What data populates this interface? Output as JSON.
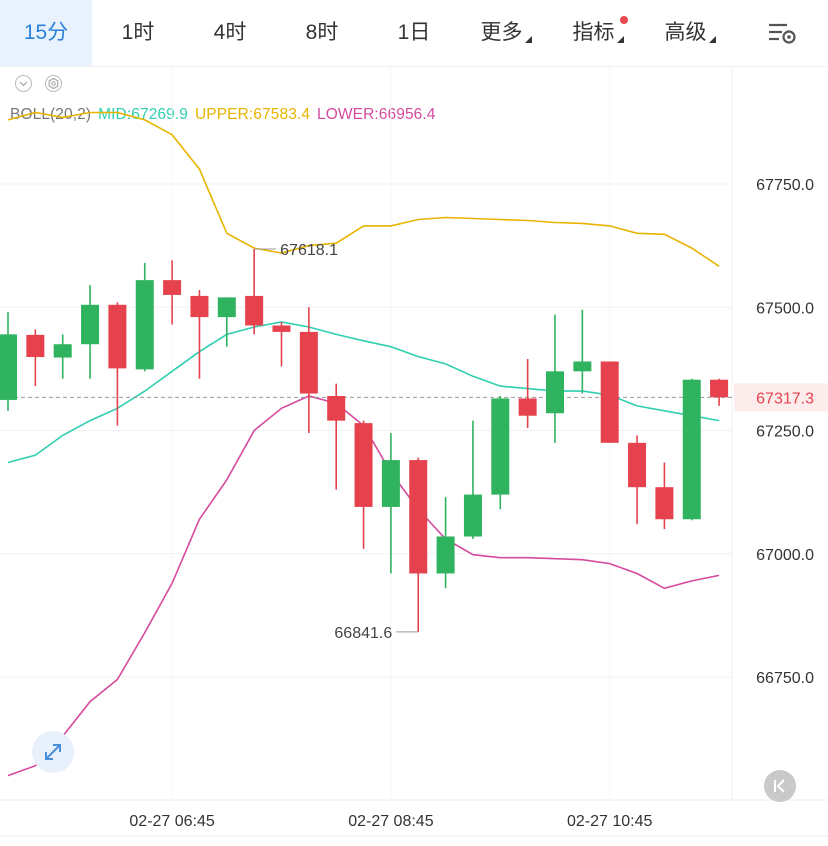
{
  "tabs": [
    {
      "label": "15分",
      "active": true,
      "dropdown": false,
      "dot": false
    },
    {
      "label": "1时",
      "active": false,
      "dropdown": false,
      "dot": false
    },
    {
      "label": "4时",
      "active": false,
      "dropdown": false,
      "dot": false
    },
    {
      "label": "8时",
      "active": false,
      "dropdown": false,
      "dot": false
    },
    {
      "label": "1日",
      "active": false,
      "dropdown": false,
      "dot": false
    },
    {
      "label": "更多",
      "active": false,
      "dropdown": true,
      "dot": false
    },
    {
      "label": "指标",
      "active": false,
      "dropdown": true,
      "dot": true
    },
    {
      "label": "高级",
      "active": false,
      "dropdown": true,
      "dot": false
    }
  ],
  "icons": {
    "settings": "chart-settings-icon",
    "collapse": "chevron-down-icon",
    "indicator_settings": "hexagon-gear-icon",
    "expand": "expand-arrows-icon",
    "back_to_latest": "skip-to-end-icon"
  },
  "legend": {
    "name": "BOLL(20,2)",
    "mid": "MID:67269.9",
    "upper": "UPPER:67583.4",
    "lower": "LOWER:66956.4"
  },
  "colors": {
    "up": "#2fb35f",
    "down": "#e5424d",
    "mid": "#2fcfb0",
    "upper": "#e8b400",
    "lower": "#d64a9e",
    "accent": "#2b7fd9",
    "current_price": "#e5424d"
  },
  "chart_data": {
    "type": "candlestick",
    "y_ticks": [
      {
        "value": 67750,
        "label": "67750.0"
      },
      {
        "value": 67500,
        "label": "67500.0"
      },
      {
        "value": 67250,
        "label": "67250.0"
      },
      {
        "value": 67000,
        "label": "67000.0"
      },
      {
        "value": 66750,
        "label": "66750.0"
      }
    ],
    "x_labels": [
      {
        "index": 6,
        "label": "02-27 06:45"
      },
      {
        "index": 14,
        "label": "02-27 08:45"
      },
      {
        "index": 22,
        "label": "02-27 10:45"
      }
    ],
    "current_price": {
      "value": 67317.3,
      "label": "67317.3"
    },
    "high_marker": {
      "index": 9,
      "value": 67618.1,
      "label": "67618.1"
    },
    "low_marker": {
      "index": 15,
      "value": 66841.6,
      "label": "66841.6"
    },
    "candles": [
      {
        "o": 67312,
        "h": 67490,
        "l": 67290,
        "c": 67445
      },
      {
        "o": 67444,
        "h": 67455,
        "l": 67340,
        "c": 67399
      },
      {
        "o": 67398,
        "h": 67445,
        "l": 67355,
        "c": 67425
      },
      {
        "o": 67425,
        "h": 67545,
        "l": 67355,
        "c": 67505
      },
      {
        "o": 67505,
        "h": 67510,
        "l": 67260,
        "c": 67376
      },
      {
        "o": 67374,
        "h": 67590,
        "l": 67370,
        "c": 67555
      },
      {
        "o": 67555,
        "h": 67595,
        "l": 67465,
        "c": 67525
      },
      {
        "o": 67523,
        "h": 67535,
        "l": 67355,
        "c": 67480
      },
      {
        "o": 67480,
        "h": 67520,
        "l": 67420,
        "c": 67520
      },
      {
        "o": 67523,
        "h": 67618.1,
        "l": 67445,
        "c": 67463
      },
      {
        "o": 67463,
        "h": 67470,
        "l": 67380,
        "c": 67450
      },
      {
        "o": 67450,
        "h": 67500,
        "l": 67245,
        "c": 67325
      },
      {
        "o": 67320,
        "h": 67345,
        "l": 67130,
        "c": 67270
      },
      {
        "o": 67265,
        "h": 67270,
        "l": 67010,
        "c": 67095
      },
      {
        "o": 67095,
        "h": 67245,
        "l": 66960,
        "c": 67190
      },
      {
        "o": 67190,
        "h": 67195,
        "l": 66841.6,
        "c": 66960
      },
      {
        "o": 66960,
        "h": 67115,
        "l": 66930,
        "c": 67035
      },
      {
        "o": 67035,
        "h": 67270,
        "l": 67030,
        "c": 67120
      },
      {
        "o": 67120,
        "h": 67320,
        "l": 67090,
        "c": 67315
      },
      {
        "o": 67315,
        "h": 67395,
        "l": 67255,
        "c": 67280
      },
      {
        "o": 67285,
        "h": 67485,
        "l": 67225,
        "c": 67370
      },
      {
        "o": 67370,
        "h": 67495,
        "l": 67325,
        "c": 67390
      },
      {
        "o": 67390,
        "h": 67390,
        "l": 67225,
        "c": 67225
      },
      {
        "o": 67225,
        "h": 67240,
        "l": 67060,
        "c": 67135
      },
      {
        "o": 67135,
        "h": 67185,
        "l": 67050,
        "c": 67070
      },
      {
        "o": 67070,
        "h": 67355,
        "l": 67068,
        "c": 67353
      },
      {
        "o": 67353,
        "h": 67355,
        "l": 67300,
        "c": 67317.3
      }
    ],
    "series": [
      {
        "name": "MID",
        "values": [
          67185,
          67200,
          67240,
          67270,
          67295,
          67330,
          67370,
          67410,
          67445,
          67460,
          67470,
          67460,
          67445,
          67432,
          67420,
          67400,
          67385,
          67360,
          67340,
          67335,
          67330,
          67330,
          67322,
          67300,
          67290,
          67280,
          67270
        ]
      },
      {
        "name": "UPPER",
        "values": [
          67880,
          67895,
          67885,
          67895,
          67895,
          67880,
          67850,
          67780,
          67650,
          67620,
          67610,
          67625,
          67630,
          67665,
          67665,
          67678,
          67682,
          67680,
          67678,
          67676,
          67672,
          67670,
          67665,
          67650,
          67648,
          67620,
          67583
        ]
      },
      {
        "name": "LOWER",
        "values": [
          66550,
          66570,
          66630,
          66700,
          66745,
          66840,
          66940,
          67070,
          67150,
          67250,
          67295,
          67320,
          67305,
          67260,
          67165,
          67090,
          67030,
          66998,
          66992,
          66992,
          66990,
          66988,
          66980,
          66960,
          66930,
          66945,
          66956
        ]
      }
    ]
  }
}
